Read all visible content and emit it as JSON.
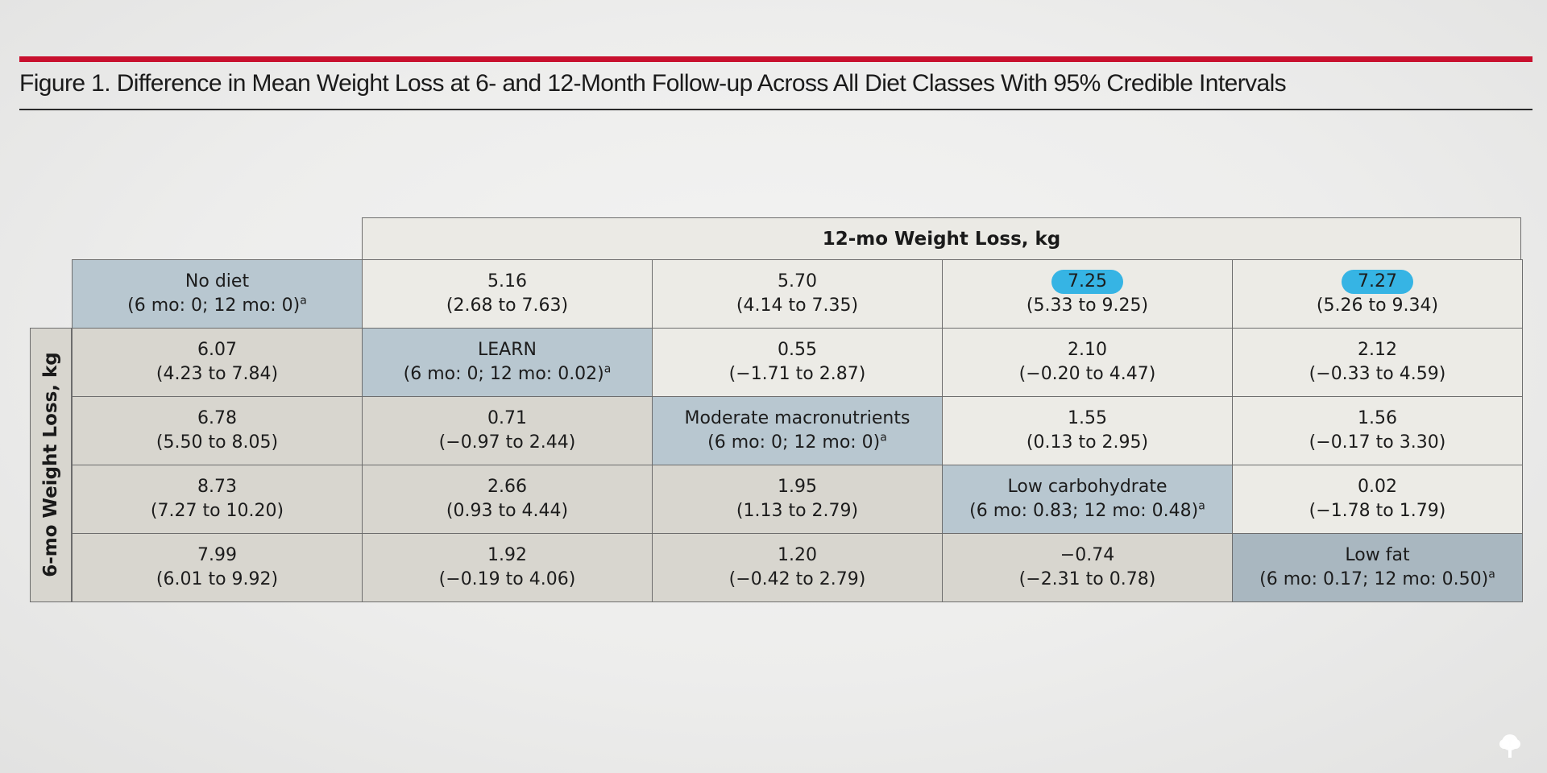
{
  "figure": {
    "title": "Figure 1. Difference in Mean Weight Loss at 6- and 12-Month Follow-up Across All Diet Classes With 95% Credible Intervals",
    "col_header": "12-mo Weight Loss, kg",
    "row_header": "6-mo Weight Loss, kg"
  },
  "table": {
    "rows": [
      {
        "cells": [
          {
            "type": "diag",
            "name": "No diet",
            "detail": "(6 mo: 0; 12 mo: 0)",
            "sup": "a"
          },
          {
            "type": "upper",
            "value": "5.16",
            "ci": "(2.68 to 7.63)"
          },
          {
            "type": "upper",
            "value": "5.70",
            "ci": "(4.14 to 7.35)"
          },
          {
            "type": "upper",
            "value": "7.25",
            "ci": "(5.33 to 9.25)",
            "highlight": true
          },
          {
            "type": "upper",
            "value": "7.27",
            "ci": "(5.26 to 9.34)",
            "highlight": true
          }
        ]
      },
      {
        "cells": [
          {
            "type": "lower",
            "value": "6.07",
            "ci": "(4.23 to 7.84)"
          },
          {
            "type": "diag",
            "name": "LEARN",
            "detail": "(6 mo: 0; 12 mo: 0.02)",
            "sup": "a"
          },
          {
            "type": "upper",
            "value": "0.55",
            "ci": "(−1.71 to 2.87)"
          },
          {
            "type": "upper",
            "value": "2.10",
            "ci": "(−0.20 to 4.47)"
          },
          {
            "type": "upper",
            "value": "2.12",
            "ci": "(−0.33 to 4.59)"
          }
        ]
      },
      {
        "cells": [
          {
            "type": "lower",
            "value": "6.78",
            "ci": "(5.50 to 8.05)"
          },
          {
            "type": "lower",
            "value": "0.71",
            "ci": "(−0.97 to 2.44)"
          },
          {
            "type": "diag",
            "name": "Moderate macronutrients",
            "detail": "(6 mo: 0; 12 mo: 0)",
            "sup": "a"
          },
          {
            "type": "upper",
            "value": "1.55",
            "ci": "(0.13 to 2.95)"
          },
          {
            "type": "upper",
            "value": "1.56",
            "ci": "(−0.17 to 3.30)"
          }
        ]
      },
      {
        "cells": [
          {
            "type": "lower",
            "value": "8.73",
            "ci": "(7.27 to 10.20)"
          },
          {
            "type": "lower",
            "value": "2.66",
            "ci": "(0.93 to 4.44)"
          },
          {
            "type": "lower",
            "value": "1.95",
            "ci": "(1.13 to 2.79)"
          },
          {
            "type": "diag",
            "name": "Low carbohydrate",
            "detail": "(6 mo: 0.83; 12 mo: 0.48)",
            "sup": "a"
          },
          {
            "type": "upper",
            "value": "0.02",
            "ci": "(−1.78 to 1.79)"
          }
        ]
      },
      {
        "cells": [
          {
            "type": "lower",
            "value": "7.99",
            "ci": "(6.01 to 9.92)"
          },
          {
            "type": "lower",
            "value": "1.92",
            "ci": "(−0.19 to 4.06)"
          },
          {
            "type": "lower",
            "value": "1.20",
            "ci": "(−0.42 to 2.79)"
          },
          {
            "type": "lower",
            "value": "−0.74",
            "ci": "(−2.31 to 0.78)"
          },
          {
            "type": "diag",
            "name": "Low fat",
            "detail": "(6 mo: 0.17; 12 mo: 0.50)",
            "sup": "a",
            "last": true
          }
        ]
      }
    ]
  },
  "colors": {
    "accent_rule": "#c8102e",
    "highlight": "#36b4e4",
    "diagonal": "#b8c7d0",
    "upper": "#ecebe6",
    "lower": "#d8d6cf"
  },
  "logo_icon": "tree-logo-icon"
}
